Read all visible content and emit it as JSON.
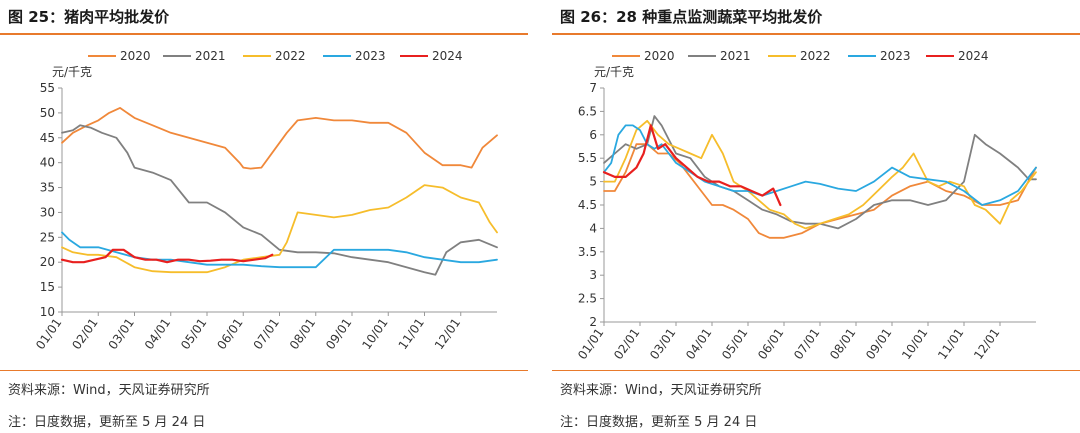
{
  "charts": [
    {
      "figure_title": "图 25：猪肉平均批发价",
      "source": "资料来源：Wind，天风证券研究所",
      "note": "注：日度数据，更新至 5 月 24 日",
      "chart_data": {
        "type": "line",
        "title": "图 25：猪肉平均批发价",
        "ylabel": "元/千克",
        "xlabel": "",
        "ylim": [
          10,
          55
        ],
        "yticks": [
          10,
          15,
          20,
          25,
          30,
          35,
          40,
          45,
          50,
          55
        ],
        "xlim": [
          0,
          12
        ],
        "xticks": [
          "01/01",
          "02/01",
          "03/01",
          "04/01",
          "05/01",
          "06/01",
          "07/01",
          "08/01",
          "09/01",
          "10/01",
          "11/01",
          "12/01"
        ],
        "legend_position": "top",
        "grid": false,
        "series": [
          {
            "name": "2020",
            "color": "#f0883a",
            "x": [
              0,
              0.3,
              0.7,
              1.0,
              1.3,
              1.6,
              2.0,
              2.5,
              3.0,
              3.5,
              4.0,
              4.5,
              4.9,
              5.0,
              5.2,
              5.5,
              5.8,
              6.2,
              6.5,
              7.0,
              7.5,
              8.0,
              8.5,
              9.0,
              9.5,
              10.0,
              10.5,
              11.0,
              11.3,
              11.6,
              12.0
            ],
            "y": [
              44,
              46,
              47.5,
              48.5,
              50,
              51,
              49,
              47.5,
              46,
              45,
              44,
              43,
              40,
              39,
              38.8,
              39,
              42,
              46,
              48.5,
              49,
              48.5,
              48.5,
              48,
              48,
              46,
              42,
              39.5,
              39.5,
              39,
              43,
              45.5
            ]
          },
          {
            "name": "2021",
            "color": "#808080",
            "x": [
              0,
              0.3,
              0.5,
              0.8,
              1.1,
              1.5,
              1.8,
              2.0,
              2.5,
              3.0,
              3.5,
              4.0,
              4.5,
              5.0,
              5.5,
              6.0,
              6.5,
              7.0,
              7.5,
              8.0,
              8.5,
              9.0,
              9.5,
              10.0,
              10.3,
              10.6,
              11.0,
              11.5,
              12.0
            ],
            "y": [
              46,
              46.5,
              47.5,
              47,
              46,
              45,
              42,
              39,
              38,
              36.5,
              32,
              32,
              30,
              27,
              25.5,
              22.5,
              22,
              22,
              21.8,
              21,
              20.5,
              20,
              19,
              18,
              17.5,
              22,
              24,
              24.5,
              23
            ]
          },
          {
            "name": "2022",
            "color": "#f6bd2b",
            "x": [
              0,
              0.3,
              0.7,
              1.0,
              1.5,
              2.0,
              2.5,
              3.0,
              3.5,
              4.0,
              4.5,
              5.0,
              5.5,
              6.0,
              6.2,
              6.5,
              7.0,
              7.5,
              8.0,
              8.5,
              9.0,
              9.5,
              10.0,
              10.5,
              11.0,
              11.5,
              11.8,
              12.0
            ],
            "y": [
              23,
              22,
              21.5,
              21.5,
              21,
              19,
              18.2,
              18,
              18,
              18,
              19,
              20.5,
              21,
              21.5,
              24,
              30,
              29.5,
              29,
              29.5,
              30.5,
              31,
              33,
              35.5,
              35,
              33,
              32,
              28,
              26
            ]
          },
          {
            "name": "2023",
            "color": "#2aa8e0",
            "x": [
              0,
              0.2,
              0.5,
              1.0,
              1.5,
              2.0,
              2.5,
              3.0,
              3.5,
              4.0,
              4.5,
              5.0,
              5.5,
              6.0,
              6.5,
              7.0,
              7.5,
              8.0,
              8.5,
              9.0,
              9.5,
              10.0,
              10.5,
              11.0,
              11.5,
              12.0
            ],
            "y": [
              26,
              24.5,
              23,
              23,
              22,
              21,
              20.5,
              20.5,
              20,
              19.5,
              19.5,
              19.5,
              19.2,
              19,
              19,
              19,
              22.5,
              22.5,
              22.5,
              22.5,
              22,
              21,
              20.5,
              20,
              20,
              20.5
            ]
          },
          {
            "name": "2024",
            "color": "#e8201f",
            "x": [
              0,
              0.3,
              0.6,
              0.9,
              1.2,
              1.4,
              1.7,
              2.0,
              2.3,
              2.6,
              2.9,
              3.2,
              3.5,
              3.8,
              4.1,
              4.4,
              4.7,
              5.0,
              5.3,
              5.6,
              5.8
            ],
            "y": [
              20.5,
              20,
              20,
              20.5,
              21,
              22.5,
              22.5,
              21,
              20.5,
              20.5,
              20,
              20.5,
              20.5,
              20.2,
              20.3,
              20.5,
              20.5,
              20.2,
              20.5,
              20.8,
              21.5
            ]
          }
        ]
      }
    },
    {
      "figure_title": "图 26：28 种重点监测蔬菜平均批发价",
      "source": "资料来源：Wind，天风证券研究所",
      "note": "注：日度数据，更新至 5 月 24 日",
      "chart_data": {
        "type": "line",
        "title": "图 26：28 种重点监测蔬菜平均批发价",
        "ylabel": "元/千克",
        "xlabel": "",
        "ylim": [
          2,
          7
        ],
        "yticks": [
          2,
          2.5,
          3,
          3.5,
          4,
          4.5,
          5,
          5.5,
          6,
          6.5,
          7
        ],
        "xlim": [
          0,
          12
        ],
        "xticks": [
          "01/01",
          "02/01",
          "03/01",
          "04/01",
          "05/01",
          "06/01",
          "07/01",
          "08/01",
          "09/01",
          "10/01",
          "11/01",
          "12/01"
        ],
        "legend_position": "top",
        "grid": false,
        "series": [
          {
            "name": "2020",
            "color": "#f0883a",
            "x": [
              0,
              0.3,
              0.6,
              0.9,
              1.2,
              1.5,
              1.8,
              2.1,
              2.4,
              2.7,
              3.0,
              3.3,
              3.6,
              4.0,
              4.3,
              4.6,
              5.0,
              5.5,
              6.0,
              6.5,
              7.0,
              7.5,
              8.0,
              8.5,
              9.0,
              9.5,
              10.0,
              10.5,
              11.0,
              11.5,
              12.0
            ],
            "y": [
              4.8,
              4.8,
              5.2,
              5.8,
              5.8,
              5.6,
              5.6,
              5.4,
              5.1,
              4.8,
              4.5,
              4.5,
              4.4,
              4.2,
              3.9,
              3.8,
              3.8,
              3.9,
              4.1,
              4.2,
              4.3,
              4.4,
              4.7,
              4.9,
              5.0,
              4.8,
              4.7,
              4.5,
              4.5,
              4.6,
              5.3
            ]
          },
          {
            "name": "2021",
            "color": "#808080",
            "x": [
              0,
              0.3,
              0.6,
              0.9,
              1.2,
              1.4,
              1.6,
              1.8,
              2.0,
              2.4,
              2.8,
              3.2,
              3.6,
              4.0,
              4.4,
              4.8,
              5.2,
              5.6,
              6.0,
              6.5,
              7.0,
              7.5,
              8.0,
              8.5,
              9.0,
              9.5,
              10.0,
              10.3,
              10.6,
              11.0,
              11.5,
              11.8,
              12.0
            ],
            "y": [
              5.4,
              5.6,
              5.8,
              5.7,
              5.8,
              6.4,
              6.2,
              5.9,
              5.6,
              5.5,
              5.1,
              4.9,
              4.8,
              4.6,
              4.4,
              4.3,
              4.15,
              4.1,
              4.1,
              4.0,
              4.2,
              4.5,
              4.6,
              4.6,
              4.5,
              4.6,
              5.0,
              6.0,
              5.8,
              5.6,
              5.3,
              5.05,
              5.05
            ]
          },
          {
            "name": "2022",
            "color": "#f6bd2b",
            "x": [
              0,
              0.3,
              0.6,
              0.9,
              1.2,
              1.5,
              1.8,
              2.1,
              2.4,
              2.7,
              3.0,
              3.3,
              3.6,
              4.0,
              4.3,
              4.6,
              5.0,
              5.3,
              5.6,
              6.0,
              6.4,
              6.8,
              7.2,
              7.6,
              8.0,
              8.3,
              8.6,
              9.0,
              9.3,
              9.6,
              10.0,
              10.3,
              10.6,
              11.0,
              11.3,
              11.6,
              12.0
            ],
            "y": [
              5.0,
              5.0,
              5.5,
              6.1,
              6.3,
              6.0,
              5.8,
              5.7,
              5.6,
              5.5,
              6.0,
              5.6,
              5.0,
              4.8,
              4.6,
              4.4,
              4.3,
              4.1,
              4.0,
              4.1,
              4.2,
              4.3,
              4.5,
              4.8,
              5.1,
              5.3,
              5.6,
              5.0,
              4.9,
              5.0,
              4.9,
              4.5,
              4.4,
              4.1,
              4.6,
              4.8,
              5.2
            ]
          },
          {
            "name": "2023",
            "color": "#2aa8e0",
            "x": [
              0,
              0.2,
              0.4,
              0.6,
              0.8,
              1.0,
              1.2,
              1.4,
              1.6,
              1.8,
              2.0,
              2.4,
              2.8,
              3.2,
              3.6,
              4.0,
              4.4,
              4.8,
              5.2,
              5.6,
              6.0,
              6.5,
              7.0,
              7.5,
              8.0,
              8.5,
              9.0,
              9.5,
              10.0,
              10.5,
              11.0,
              11.5,
              12.0
            ],
            "y": [
              5.2,
              5.4,
              6.0,
              6.2,
              6.2,
              6.1,
              5.8,
              5.7,
              5.8,
              5.6,
              5.4,
              5.2,
              5.0,
              4.9,
              4.8,
              4.8,
              4.7,
              4.8,
              4.9,
              5.0,
              4.95,
              4.85,
              4.8,
              5.0,
              5.3,
              5.1,
              5.05,
              5.0,
              4.8,
              4.5,
              4.6,
              4.8,
              5.3
            ]
          },
          {
            "name": "2024",
            "color": "#e8201f",
            "x": [
              0,
              0.3,
              0.6,
              0.9,
              1.1,
              1.3,
              1.5,
              1.7,
              2.0,
              2.3,
              2.6,
              2.9,
              3.2,
              3.5,
              3.8,
              4.1,
              4.4,
              4.7,
              4.9
            ],
            "y": [
              5.2,
              5.1,
              5.1,
              5.3,
              5.6,
              6.2,
              5.7,
              5.8,
              5.5,
              5.3,
              5.1,
              5.0,
              5.0,
              4.9,
              4.9,
              4.8,
              4.7,
              4.85,
              4.5
            ]
          }
        ]
      }
    }
  ]
}
